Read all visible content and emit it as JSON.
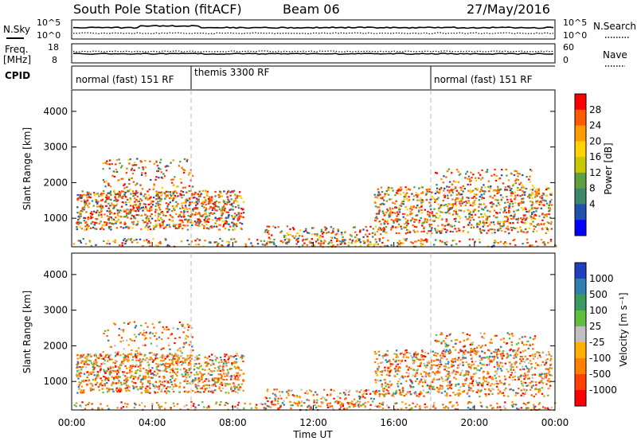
{
  "header": {
    "title": "South Pole Station (fitACF)",
    "beam": "Beam 06",
    "date": "27/May/2016"
  },
  "top_panels": {
    "nsky_label": "N.Sky",
    "nsky_ticks": [
      "10^5",
      "10^0"
    ],
    "nsearch_label": "N.Search",
    "nsearch_ticks": [
      "10^5",
      "10^0"
    ],
    "freq_label": "Freq.",
    "freq_unit": "[MHz]",
    "freq_ticks": [
      "18",
      "8"
    ],
    "nave_label": "Nave",
    "nave_ticks": [
      "60",
      "0"
    ],
    "cpid_label": "CPID",
    "cpid_segments": [
      "normal (fast) 151 RF",
      "themis 3300 RF",
      "normal (fast) 151 RF"
    ]
  },
  "x_axis": {
    "title": "Time UT",
    "ticks": [
      "00:00",
      "04:00",
      "08:00",
      "12:00",
      "16:00",
      "20:00",
      "00:00"
    ]
  },
  "power_colorbar": {
    "label": "Power [dB]",
    "ticks": [
      "28",
      "24",
      "20",
      "16",
      "12",
      "8",
      "4"
    ],
    "colors": [
      "#ff0000",
      "#ff5a00",
      "#ff9a00",
      "#ffd200",
      "#c8c800",
      "#5fa040",
      "#3a8a6a",
      "#2050b0",
      "#0000ff"
    ]
  },
  "velocity_colorbar": {
    "label": "Velocity [m s⁻¹]",
    "ticks": [
      "1000",
      "500",
      "100",
      "25",
      "-25",
      "-100",
      "-500",
      "-1000"
    ],
    "colors": [
      "#1f3fbf",
      "#2f7fb0",
      "#3a9a60",
      "#5fc040",
      "#c0c0c0",
      "#ffb000",
      "#ff8000",
      "#ff4000",
      "#ff0000"
    ]
  },
  "chart_data": [
    {
      "type": "heatmap",
      "name": "power",
      "ylabel": "Slant Range [km]",
      "xlabel": "Time UT",
      "y_ticks": [
        "4000",
        "3000",
        "2000",
        "1000"
      ],
      "ylim": [
        200,
        4600
      ],
      "xlim_hours": [
        0,
        24
      ],
      "dashed_time_markers_hours": [
        6,
        18
      ]
    },
    {
      "type": "heatmap",
      "name": "velocity",
      "ylabel": "Slant Range [km]",
      "xlabel": "Time UT",
      "y_ticks": [
        "4000",
        "3000",
        "2000",
        "1000"
      ],
      "ylim": [
        200,
        4600
      ],
      "xlim_hours": [
        0,
        24
      ],
      "dashed_time_markers_hours": [
        6,
        18
      ]
    }
  ]
}
